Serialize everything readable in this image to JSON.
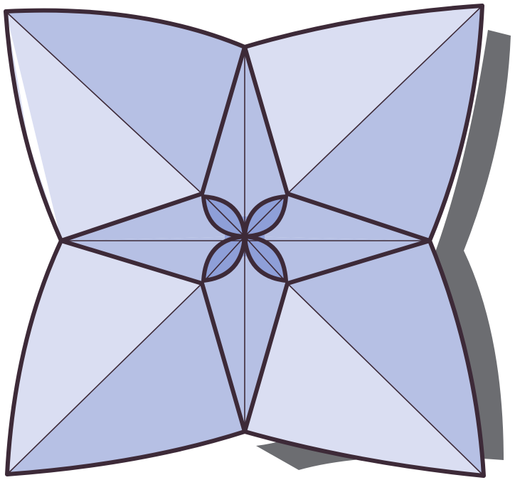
{
  "logo": {
    "colors": {
      "outline": "#3d2a38",
      "fold_light": "#dadef2",
      "fold_mid": "#b6c0e4",
      "center": "#8e9fd8",
      "shadow": "#6c6d71",
      "background": "#ffffff"
    }
  }
}
